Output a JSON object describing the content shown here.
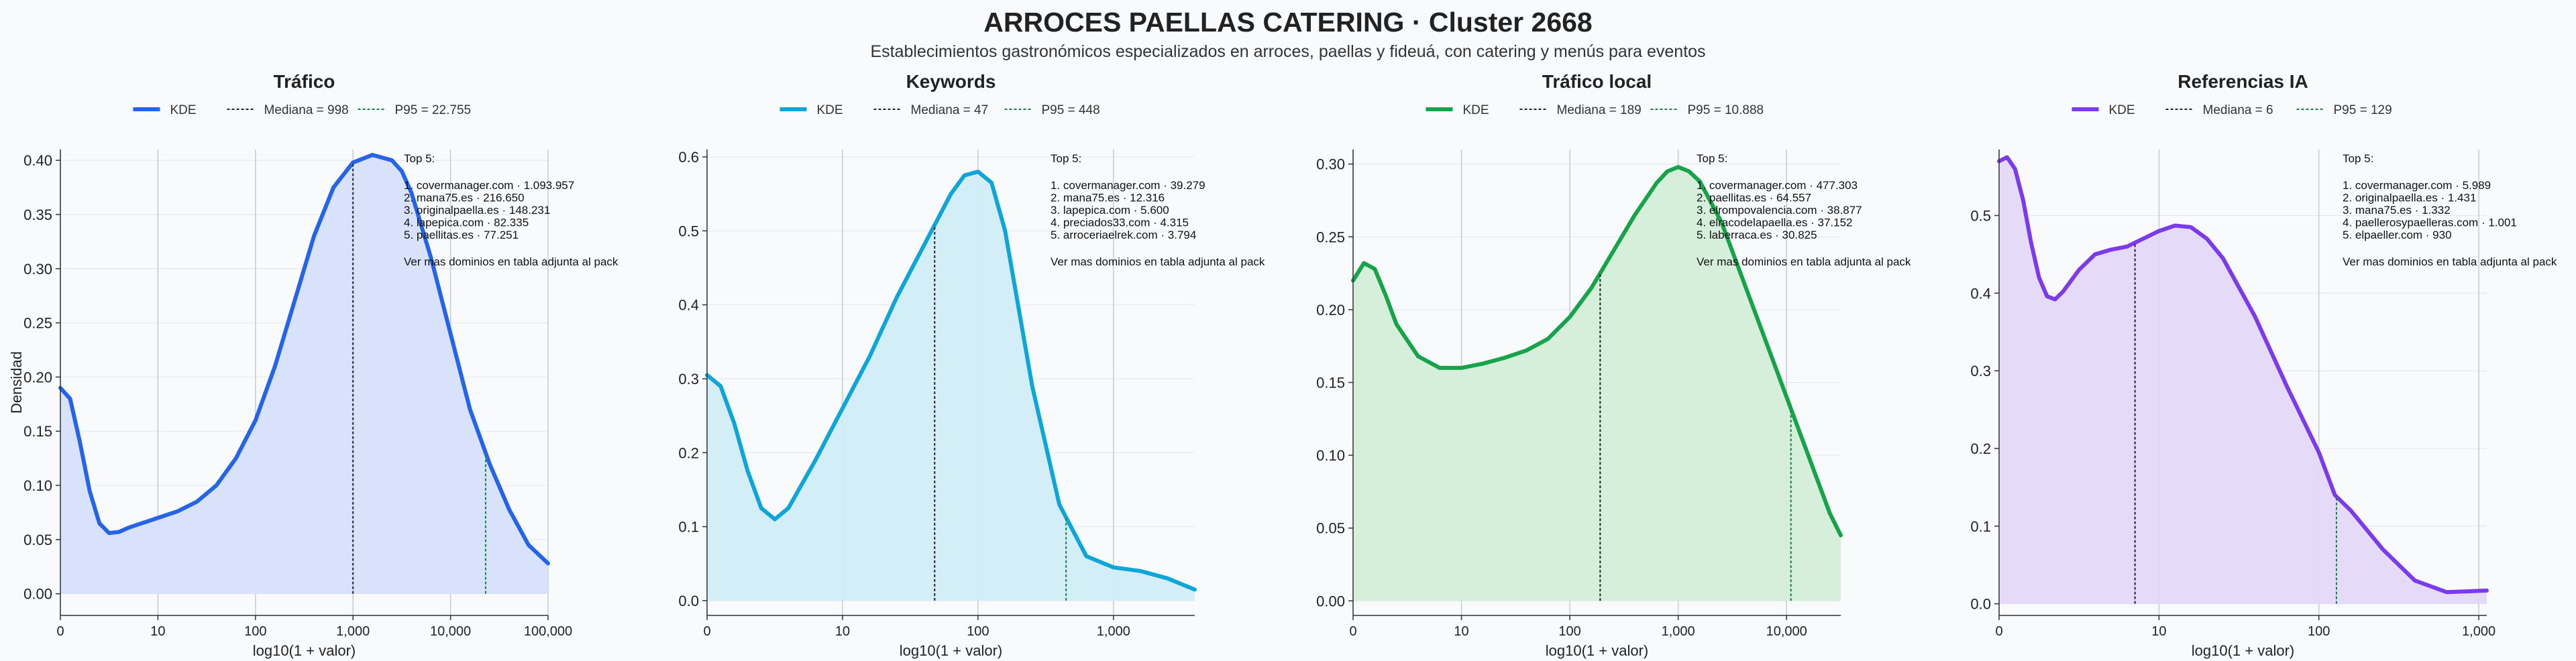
{
  "header": {
    "title": "ARROCES PAELLAS CATERING · Cluster 2668",
    "subtitle": "Establecimientos gastronómicos especializados en arroces, paellas y fideuá, con catering y menús para eventos"
  },
  "top_label": "Top 5:",
  "top_footer": "Ver mas dominios en tabla adjunta al pack",
  "chart_data": [
    {
      "type": "area",
      "title": "Tráfico",
      "xlabel": "log10(1 + valor)",
      "ylabel": "Densidad",
      "color": "#2563eb",
      "fill": "#d6e2fb",
      "xlim": [
        0,
        5.0
      ],
      "ylim": [
        -0.02,
        0.41
      ],
      "xticks": [
        {
          "v": 0,
          "l": "0"
        },
        {
          "v": 1,
          "l": "10"
        },
        {
          "v": 2,
          "l": "100"
        },
        {
          "v": 3,
          "l": "1,000"
        },
        {
          "v": 4,
          "l": "10,000"
        },
        {
          "v": 5,
          "l": "100,000"
        }
      ],
      "yticks": [
        {
          "v": 0,
          "l": "0.00"
        },
        {
          "v": 0.05,
          "l": "0.05"
        },
        {
          "v": 0.1,
          "l": "0.10"
        },
        {
          "v": 0.15,
          "l": "0.15"
        },
        {
          "v": 0.2,
          "l": "0.20"
        },
        {
          "v": 0.25,
          "l": "0.25"
        },
        {
          "v": 0.3,
          "l": "0.30"
        },
        {
          "v": 0.35,
          "l": "0.35"
        },
        {
          "v": 0.4,
          "l": "0.40"
        }
      ],
      "legend": {
        "kde": "KDE",
        "median": "Mediana = 998",
        "p95": "P95 = 22.755"
      },
      "median_x": 3.0,
      "p95_x": 4.36,
      "top5": [
        "1. covermanager.com · 1.093.957",
        "2. mana75.es · 216.650",
        "3. originalpaella.es · 148.231",
        "4. lapepica.com · 82.335",
        "5. paellitas.es · 77.251"
      ],
      "x": [
        0,
        0.1,
        0.2,
        0.3,
        0.4,
        0.5,
        0.6,
        0.7,
        0.8,
        0.9,
        1.0,
        1.2,
        1.4,
        1.6,
        1.8,
        2.0,
        2.2,
        2.4,
        2.6,
        2.8,
        3.0,
        3.2,
        3.4,
        3.5,
        3.6,
        3.8,
        4.0,
        4.2,
        4.4,
        4.6,
        4.8,
        5.0
      ],
      "y": [
        0.19,
        0.18,
        0.14,
        0.095,
        0.065,
        0.056,
        0.057,
        0.061,
        0.064,
        0.067,
        0.07,
        0.076,
        0.085,
        0.1,
        0.125,
        0.16,
        0.21,
        0.27,
        0.33,
        0.375,
        0.398,
        0.405,
        0.4,
        0.39,
        0.37,
        0.31,
        0.24,
        0.17,
        0.12,
        0.078,
        0.045,
        0.028
      ]
    },
    {
      "type": "area",
      "title": "Keywords",
      "xlabel": "log10(1 + valor)",
      "ylabel": "",
      "color": "#0ea5d9",
      "fill": "#d2edf8",
      "xlim": [
        0,
        3.6
      ],
      "ylim": [
        -0.02,
        0.61
      ],
      "xticks": [
        {
          "v": 0,
          "l": "0"
        },
        {
          "v": 1,
          "l": "10"
        },
        {
          "v": 2,
          "l": "100"
        },
        {
          "v": 3,
          "l": "1,000"
        }
      ],
      "yticks": [
        {
          "v": 0,
          "l": "0.0"
        },
        {
          "v": 0.1,
          "l": "0.1"
        },
        {
          "v": 0.2,
          "l": "0.2"
        },
        {
          "v": 0.3,
          "l": "0.3"
        },
        {
          "v": 0.4,
          "l": "0.4"
        },
        {
          "v": 0.5,
          "l": "0.5"
        },
        {
          "v": 0.6,
          "l": "0.6"
        }
      ],
      "legend": {
        "kde": "KDE",
        "median": "Mediana = 47",
        "p95": "P95 = 448"
      },
      "median_x": 1.68,
      "p95_x": 2.65,
      "top5": [
        "1. covermanager.com · 39.279",
        "2. mana75.es · 12.316",
        "3. lapepica.com · 5.600",
        "4. preciados33.com · 4.315",
        "5. arroceriaelrek.com · 3.794"
      ],
      "x": [
        0,
        0.1,
        0.2,
        0.3,
        0.4,
        0.5,
        0.6,
        0.8,
        1.0,
        1.2,
        1.4,
        1.6,
        1.8,
        1.9,
        2.0,
        2.1,
        2.2,
        2.4,
        2.6,
        2.8,
        3.0,
        3.2,
        3.4,
        3.6
      ],
      "y": [
        0.305,
        0.29,
        0.24,
        0.175,
        0.125,
        0.11,
        0.125,
        0.19,
        0.26,
        0.33,
        0.41,
        0.48,
        0.55,
        0.575,
        0.58,
        0.565,
        0.5,
        0.29,
        0.13,
        0.06,
        0.045,
        0.04,
        0.03,
        0.015
      ]
    },
    {
      "type": "area",
      "title": "Tráfico local",
      "xlabel": "log10(1 + valor)",
      "ylabel": "",
      "color": "#16a34a",
      "fill": "#d3eed9",
      "xlim": [
        0,
        4.5
      ],
      "ylim": [
        -0.01,
        0.31
      ],
      "xticks": [
        {
          "v": 0,
          "l": "0"
        },
        {
          "v": 1,
          "l": "10"
        },
        {
          "v": 2,
          "l": "100"
        },
        {
          "v": 3,
          "l": "1,000"
        },
        {
          "v": 4,
          "l": "10,000"
        }
      ],
      "yticks": [
        {
          "v": 0,
          "l": "0.00"
        },
        {
          "v": 0.05,
          "l": "0.05"
        },
        {
          "v": 0.1,
          "l": "0.10"
        },
        {
          "v": 0.15,
          "l": "0.15"
        },
        {
          "v": 0.2,
          "l": "0.20"
        },
        {
          "v": 0.25,
          "l": "0.25"
        },
        {
          "v": 0.3,
          "l": "0.30"
        }
      ],
      "legend": {
        "kde": "KDE",
        "median": "Mediana = 189",
        "p95": "P95 = 10.888"
      },
      "median_x": 2.28,
      "p95_x": 4.04,
      "top5": [
        "1. covermanager.com · 477.303",
        "2. paellitas.es · 64.557",
        "3. elrompovalencia.com · 38.877",
        "4. elracodelapaella.es · 37.152",
        "5. laberraca.es · 30.825"
      ],
      "x": [
        0,
        0.1,
        0.2,
        0.3,
        0.4,
        0.6,
        0.8,
        1.0,
        1.2,
        1.4,
        1.6,
        1.8,
        2.0,
        2.2,
        2.4,
        2.6,
        2.8,
        2.9,
        3.0,
        3.1,
        3.2,
        3.4,
        3.6,
        3.8,
        4.0,
        4.2,
        4.4,
        4.5
      ],
      "y": [
        0.22,
        0.232,
        0.228,
        0.21,
        0.19,
        0.168,
        0.16,
        0.16,
        0.163,
        0.167,
        0.172,
        0.18,
        0.195,
        0.215,
        0.24,
        0.265,
        0.287,
        0.295,
        0.298,
        0.295,
        0.288,
        0.26,
        0.22,
        0.18,
        0.14,
        0.1,
        0.06,
        0.045
      ]
    },
    {
      "type": "area",
      "title": "Referencias IA",
      "xlabel": "log10(1 + valor)",
      "ylabel": "",
      "color": "#7c3aed",
      "fill": "#e4d8f8",
      "xlim": [
        0,
        3.05
      ],
      "ylim": [
        -0.015,
        0.585
      ],
      "xticks": [
        {
          "v": 0,
          "l": "0"
        },
        {
          "v": 1,
          "l": "10"
        },
        {
          "v": 2,
          "l": "100"
        },
        {
          "v": 3,
          "l": "1,000"
        }
      ],
      "yticks": [
        {
          "v": 0,
          "l": "0.0"
        },
        {
          "v": 0.1,
          "l": "0.1"
        },
        {
          "v": 0.2,
          "l": "0.2"
        },
        {
          "v": 0.3,
          "l": "0.3"
        },
        {
          "v": 0.4,
          "l": "0.4"
        },
        {
          "v": 0.5,
          "l": "0.5"
        }
      ],
      "legend": {
        "kde": "KDE",
        "median": "Mediana = 6",
        "p95": "P95 = 129"
      },
      "median_x": 0.85,
      "p95_x": 2.11,
      "top5": [
        "1. covermanager.com · 5.989",
        "2. originalpaella.es · 1.431",
        "3. mana75.es · 1.332",
        "4. paellerosypaelleras.com · 1.001",
        "5. elpaeller.com · 930"
      ],
      "x": [
        0,
        0.05,
        0.1,
        0.15,
        0.2,
        0.25,
        0.3,
        0.35,
        0.4,
        0.5,
        0.6,
        0.7,
        0.8,
        0.9,
        1.0,
        1.1,
        1.2,
        1.3,
        1.4,
        1.6,
        1.8,
        2.0,
        2.1,
        2.2,
        2.4,
        2.6,
        2.8,
        3.05
      ],
      "y": [
        0.57,
        0.575,
        0.56,
        0.52,
        0.465,
        0.42,
        0.396,
        0.392,
        0.402,
        0.43,
        0.45,
        0.456,
        0.46,
        0.47,
        0.48,
        0.487,
        0.485,
        0.47,
        0.445,
        0.37,
        0.28,
        0.195,
        0.14,
        0.12,
        0.07,
        0.03,
        0.015,
        0.017
      ]
    }
  ]
}
